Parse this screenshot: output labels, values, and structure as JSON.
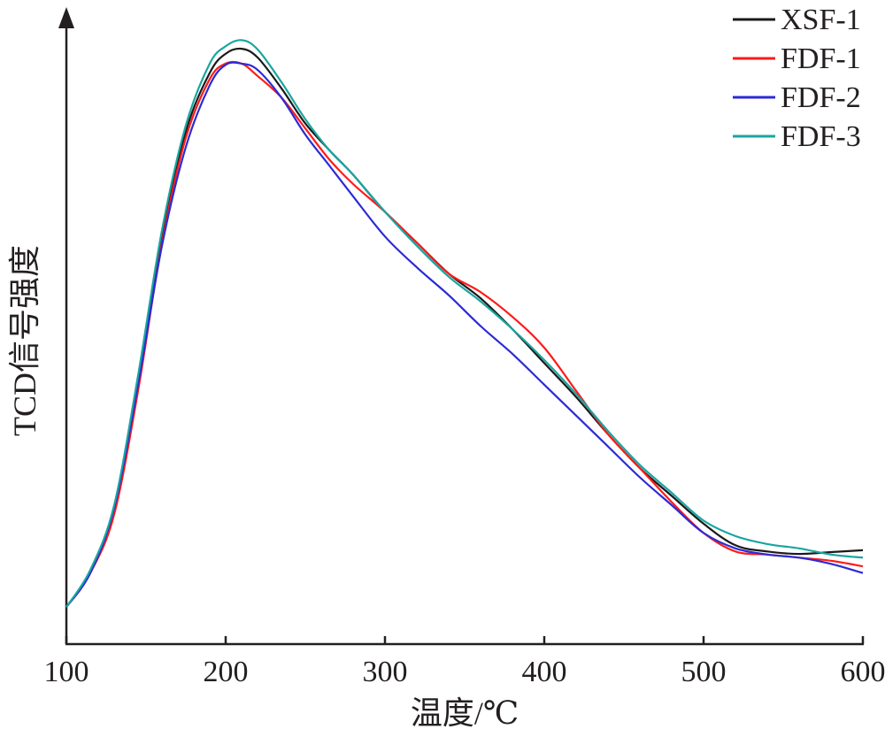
{
  "chart_data": {
    "type": "line",
    "xlabel": "温度/℃",
    "ylabel": "TCD信号强度",
    "xlim": [
      100,
      600
    ],
    "ylim": [
      0,
      100
    ],
    "xticks": [
      100,
      200,
      300,
      400,
      500,
      600
    ],
    "xtick_labels": [
      "100",
      "200",
      "300",
      "400",
      "500",
      "600"
    ],
    "y_tick_labels_shown": false,
    "grid": false,
    "legend_position": "top-right",
    "series": [
      {
        "name": "XSF-1",
        "color": "#1a1a1a",
        "x": [
          100,
          115,
          130,
          145,
          160,
          175,
          190,
          200,
          210,
          220,
          235,
          250,
          265,
          280,
          300,
          320,
          340,
          360,
          380,
          400,
          420,
          440,
          460,
          480,
          500,
          520,
          540,
          560,
          580,
          600
        ],
        "y": [
          6.0,
          11.5,
          22.0,
          43.0,
          66.0,
          83.0,
          92.5,
          95.6,
          96.4,
          95.0,
          90.0,
          84.3,
          80.0,
          76.0,
          70.0,
          65.0,
          60.0,
          56.0,
          51.0,
          45.5,
          40.0,
          34.0,
          28.5,
          24.0,
          19.5,
          16.0,
          15.0,
          14.6,
          14.9,
          15.2
        ]
      },
      {
        "name": "FDF-1",
        "color": "#ff1a1a",
        "x": [
          100,
          115,
          130,
          145,
          160,
          175,
          190,
          200,
          210,
          220,
          235,
          250,
          265,
          280,
          300,
          320,
          340,
          360,
          380,
          400,
          420,
          440,
          460,
          480,
          500,
          520,
          540,
          560,
          580,
          600
        ],
        "y": [
          6.0,
          11.5,
          21.0,
          41.0,
          65.0,
          82.0,
          91.5,
          94.0,
          94.0,
          92.0,
          88.5,
          83.5,
          78.5,
          74.5,
          70.0,
          65.0,
          60.0,
          57.0,
          53.0,
          48.0,
          41.0,
          34.0,
          28.5,
          23.0,
          18.0,
          15.0,
          14.5,
          14.0,
          13.5,
          12.6
        ]
      },
      {
        "name": "FDF-2",
        "color": "#2b2bd6",
        "x": [
          100,
          115,
          130,
          145,
          160,
          175,
          190,
          200,
          210,
          220,
          235,
          250,
          265,
          280,
          300,
          320,
          340,
          360,
          380,
          400,
          420,
          440,
          460,
          480,
          500,
          520,
          540,
          560,
          580,
          600
        ],
        "y": [
          6.0,
          11.5,
          22.0,
          42.0,
          64.5,
          80.5,
          90.5,
          93.8,
          94.0,
          93.0,
          88.5,
          82.5,
          77.5,
          72.5,
          66.0,
          61.0,
          56.5,
          51.5,
          47.0,
          42.0,
          37.0,
          32.0,
          27.0,
          22.5,
          18.0,
          15.5,
          14.5,
          14.0,
          13.0,
          11.5
        ]
      },
      {
        "name": "FDF-3",
        "color": "#1aa5a0",
        "x": [
          100,
          115,
          130,
          145,
          160,
          175,
          190,
          200,
          210,
          220,
          235,
          250,
          265,
          280,
          300,
          320,
          340,
          360,
          380,
          400,
          420,
          440,
          460,
          480,
          500,
          520,
          540,
          560,
          580,
          600
        ],
        "y": [
          6.0,
          12.0,
          22.5,
          43.5,
          67.0,
          84.0,
          94.0,
          96.8,
          97.8,
          96.3,
          91.0,
          85.0,
          80.0,
          76.0,
          70.0,
          64.5,
          59.5,
          55.5,
          51.0,
          46.0,
          40.5,
          34.5,
          29.0,
          24.5,
          20.0,
          17.5,
          16.2,
          15.5,
          14.5,
          14.0
        ]
      }
    ]
  }
}
